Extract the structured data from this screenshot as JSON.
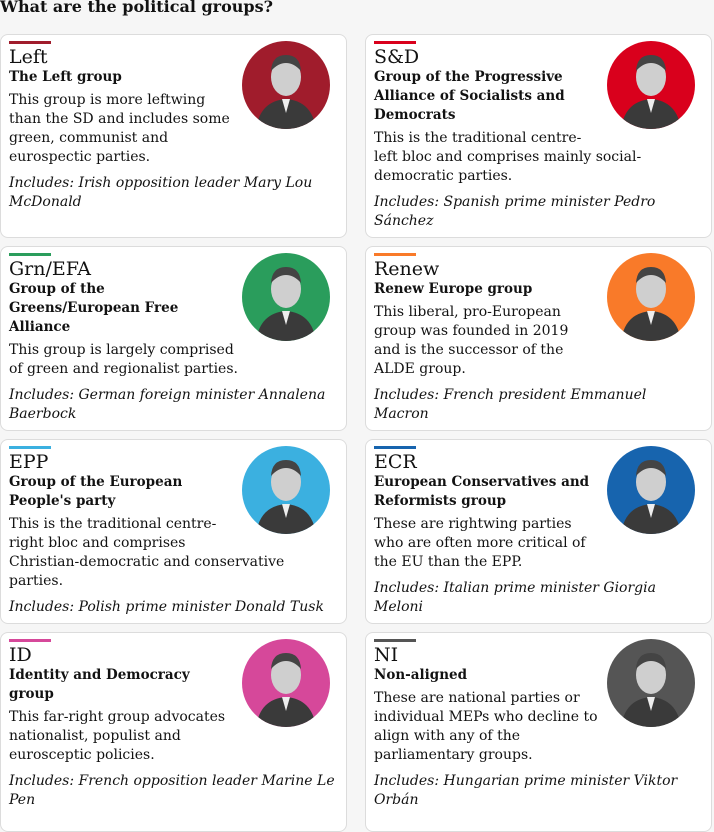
{
  "header": {
    "title": "What are the political groups?"
  },
  "groups": [
    {
      "abbr": "Left",
      "name": "The Left group",
      "description": "This group is more leftwing than the SD and includes some green, communist and eurospectic parties.",
      "includes": "Includes: Irish opposition leader Mary Lou McDonald",
      "color": "#a01c2c"
    },
    {
      "abbr": "S&D",
      "name": "Group of the Progressive Alliance of Socialists and Democrats",
      "description": "This is the traditional centre-left bloc and comprises mainly social-democratic parties.",
      "includes": "Includes: Spanish prime minister Pedro Sánchez",
      "color": "#d9001c"
    },
    {
      "abbr": "Grn/EFA",
      "name": "Group of the Greens/European Free Alliance",
      "description": "This group is largely comprised of green and regionalist parties.",
      "includes": "Includes: German foreign minister Annalena Baerbock",
      "color": "#2a9d5c"
    },
    {
      "abbr": "Renew",
      "name": "Renew Europe group",
      "description": "This liberal, pro-European group was founded in 2019 and is the successor of the ALDE group.",
      "includes": "Includes: French president Emmanuel Macron",
      "color": "#f97a29"
    },
    {
      "abbr": "EPP",
      "name": "Group of the European People's party",
      "description": "This is the traditional centre-right bloc and comprises Christian-democratic and conservative parties.",
      "includes": "Includes: Polish prime minister Donald Tusk",
      "color": "#3bb0e0"
    },
    {
      "abbr": "ECR",
      "name": "European Conservatives and Reformists group",
      "description": "These are rightwing parties who are often more critical of the EU than the EPP.",
      "includes": "Includes: Italian prime minister Giorgia Meloni",
      "color": "#1764ae"
    },
    {
      "abbr": "ID",
      "name": "Identity and Democracy group",
      "description": "This far-right group advocates nationalist, populist and eurosceptic policies.",
      "includes": "Includes: French opposition leader Marine Le Pen",
      "color": "#d6489a"
    },
    {
      "abbr": "NI",
      "name": "Non-aligned",
      "description": "These are national parties or individual MEPs who decline to align with any of the parliamentary groups.",
      "includes": "Includes: Hungarian prime minister Viktor Orbán",
      "color": "#555555"
    }
  ]
}
